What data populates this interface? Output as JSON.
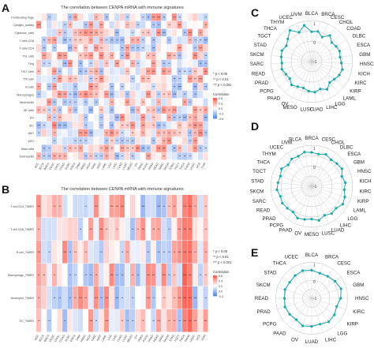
{
  "panels": {
    "A": "A",
    "B": "B",
    "C": "C",
    "D": "D",
    "E": "E"
  },
  "chart_data": [
    {
      "id": "heatmap-a",
      "type": "heatmap",
      "title": "The correlation between CENPA mRNA with immune signatures",
      "rows": [
        "Proliferating Page",
        "Cytolytic_activity",
        "Cytotoxic_cells",
        "T cells CD8",
        "T cells CD4",
        "Th1 cells",
        "Treg",
        "Th17 cells",
        "Tfh cells",
        "B cells",
        "Macrophages",
        "Neutrophils",
        "NK cells",
        "DC",
        "iDC",
        "aDC",
        "pDC",
        "Mast cells",
        "Eosinophils"
      ],
      "columns": [
        "ACC",
        "BLCA",
        "BRCA",
        "CESC",
        "CHOL",
        "COAD",
        "DLBC",
        "ESCA",
        "GBM",
        "HNSC",
        "KICH",
        "KIRC",
        "KIRP",
        "LAML",
        "LGG",
        "LIHC",
        "LUAD",
        "LUSC",
        "MESO",
        "OV",
        "PAAD",
        "PCPG",
        "PRAD",
        "READ",
        "SARC",
        "SKCM",
        "STAD",
        "TGCT",
        "THCA",
        "THYM",
        "UCEC",
        "UCS",
        "UVM"
      ],
      "legend": {
        "title": "Correlation",
        "ticks": [
          "0.6",
          "0.3",
          "0.0",
          "-0.3",
          "-0.6"
        ],
        "significance": [
          "* p < 0.05",
          "** p < 0.01",
          "*** p < 0.001"
        ]
      }
    },
    {
      "id": "heatmap-b",
      "type": "heatmap",
      "title": "The correlation between CENPA mRNA with immune signatures",
      "rows": [
        "T cell CD4_TIMER",
        "T cell CD8_TIMER",
        "B cell_TIMER",
        "Macrophage_TIMER",
        "Neutrophil_TIMER",
        "DC_TIMER"
      ],
      "columns": [
        "ACC",
        "BLCA",
        "BRCA",
        "CESC",
        "CHOL",
        "COAD",
        "DLBC",
        "ESCA",
        "GBM",
        "HNSC",
        "KICH",
        "KIRC",
        "KIRP",
        "LAML",
        "LGG",
        "LIHC",
        "LUAD",
        "LUSC",
        "MESO",
        "OV",
        "PAAD",
        "PCPG",
        "PRAD",
        "READ",
        "SARC",
        "SKCM",
        "STAD",
        "TGCT",
        "THCA",
        "THYM",
        "UCEC",
        "UCS",
        "UVM"
      ],
      "legend": {
        "title": "Correlation",
        "ticks": [
          "0.6",
          "0.4",
          "0.2",
          "0.0",
          "-0.2"
        ],
        "significance": [
          "* p < 0.05",
          "** p < 0.01",
          "*** p < 0.001"
        ]
      }
    },
    {
      "id": "radar-c",
      "type": "radar",
      "categories": [
        "BLCA",
        "BRCA",
        "CESC",
        "CHOL",
        "COAD",
        "DLBC",
        "ESCA",
        "GBM",
        "HNSC",
        "KICH",
        "KIRC",
        "KIRP",
        "LAML",
        "LGG",
        "LIHC",
        "LUAD",
        "LUSC",
        "MESO",
        "OV",
        "PAAD",
        "PCPG",
        "PRAD",
        "READ",
        "SARC",
        "SKCM",
        "STAD",
        "TGCT",
        "THCA",
        "THYM",
        "UCEC",
        "UVM"
      ],
      "values": [
        0.45,
        0.5,
        0.3,
        0.55,
        0.35,
        0.4,
        0.45,
        0.4,
        0.45,
        0.55,
        0.5,
        0.4,
        0.35,
        0.55,
        0.4,
        0.5,
        0.45,
        0.35,
        0.4,
        0.5,
        0.35,
        0.4,
        0.5,
        0.45,
        0.5,
        0.55,
        0.45,
        0.6,
        0.85,
        0.55,
        0.8
      ],
      "range": [
        -1,
        1
      ],
      "ring_labels": [
        "1",
        "0",
        "-1"
      ]
    },
    {
      "id": "radar-d",
      "type": "radar",
      "categories": [
        "BRCA",
        "CESC",
        "CHOL",
        "DLBC",
        "ESCA",
        "GBM",
        "HNSC",
        "KICH",
        "KIRC",
        "KIRP",
        "LAML",
        "LGG",
        "LIHC",
        "LUAD",
        "LUSC",
        "MESO",
        "OV",
        "PAAD",
        "PCPG",
        "PRAD",
        "READ",
        "SARC",
        "SKCM",
        "STAD",
        "TGCT",
        "THCA",
        "THYM",
        "UCEC",
        "UVM",
        "BLCA"
      ],
      "values": [
        0.65,
        0.6,
        0.7,
        0.6,
        0.65,
        0.7,
        0.55,
        0.65,
        0.6,
        0.7,
        0.75,
        0.6,
        0.65,
        0.55,
        0.7,
        0.6,
        0.65,
        0.7,
        0.55,
        0.6,
        0.65,
        0.6,
        0.7,
        0.65,
        0.6,
        0.7,
        0.55,
        0.65,
        0.6,
        0.7
      ],
      "range": [
        -1,
        1
      ],
      "ring_labels": [
        "1",
        "0",
        "-1"
      ]
    },
    {
      "id": "radar-e",
      "type": "radar",
      "categories": [
        "BLCA",
        "BRCA",
        "CESC",
        "ESCA",
        "GBM",
        "HNSC",
        "KIRC",
        "KIRP",
        "LGG",
        "LIHC",
        "LUAD",
        "OV",
        "PAAD",
        "PCPG",
        "PRAD",
        "READ",
        "SKCM",
        "STAD",
        "THCA",
        "UCEC"
      ],
      "values": [
        0.55,
        0.45,
        0.5,
        0.6,
        0.7,
        0.6,
        0.45,
        0.55,
        0.6,
        0.5,
        0.55,
        0.6,
        0.45,
        0.5,
        0.55,
        0.5,
        0.55,
        0.5,
        0.55,
        0.6
      ],
      "range": [
        -1,
        1
      ],
      "ring_labels": [
        "1",
        "0",
        "-1"
      ]
    }
  ]
}
